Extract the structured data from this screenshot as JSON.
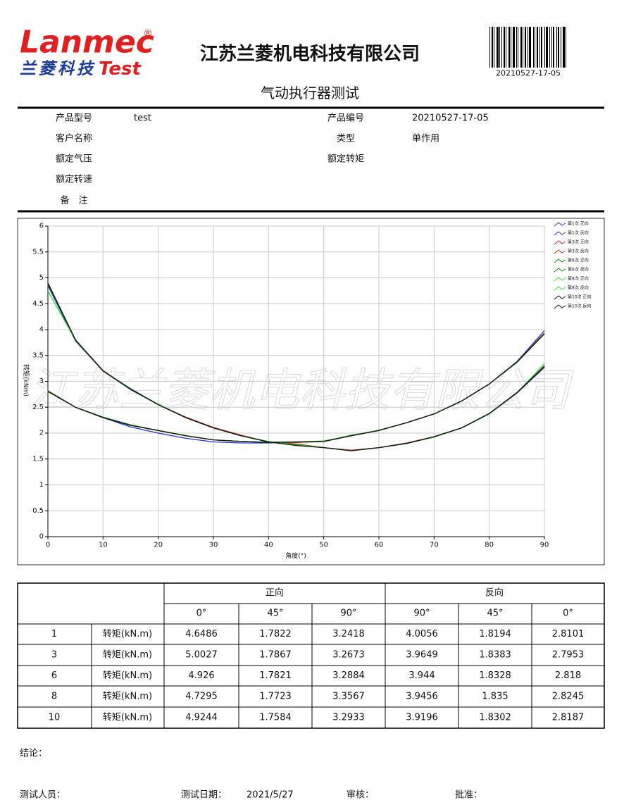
{
  "header": {
    "logo_brand": "Lanmec",
    "logo_reg": "®",
    "logo_cn": "兰菱科技",
    "logo_en": "Test",
    "company": "江苏兰菱机电科技有限公司",
    "barcode": "20210527-17-05",
    "title": "气动执行器测试"
  },
  "info": [
    {
      "label": "产品型号",
      "value": "test"
    },
    {
      "label": "产品编号",
      "value": "20210527-17-05"
    },
    {
      "label": "客户名称"
    },
    {
      "label": "类型",
      "value": "单作用"
    },
    {
      "label": "额定气压"
    },
    {
      "label": "额定转矩"
    },
    {
      "label": "额定转速"
    },
    {
      "label": "备　注"
    }
  ],
  "watermark": "江苏兰菱机电科技有限公司",
  "chart_data": {
    "type": "line",
    "x_label": "角度(°)",
    "y_label": "转矩(kNm)",
    "x": [
      0,
      5,
      10,
      15,
      20,
      25,
      30,
      35,
      40,
      45,
      50,
      55,
      60,
      65,
      70,
      75,
      80,
      85,
      90
    ],
    "series": [
      {
        "name": "第1次 正向",
        "color": "#2233dd",
        "values": [
          4.85,
          3.78,
          3.2,
          2.84,
          2.55,
          2.3,
          2.1,
          1.95,
          1.83,
          1.78,
          1.72,
          1.66,
          1.72,
          1.8,
          1.93,
          2.1,
          2.37,
          2.77,
          3.27
        ]
      },
      {
        "name": "第1次 反向",
        "color": "#2233dd",
        "values": [
          2.82,
          2.5,
          2.3,
          2.12,
          2.0,
          1.9,
          1.83,
          1.81,
          1.81,
          1.82,
          1.84,
          1.95,
          2.05,
          2.2,
          2.37,
          2.62,
          2.95,
          3.38,
          3.98
        ]
      },
      {
        "name": "第3次 正向",
        "color": "#dd2222",
        "values": [
          4.9,
          3.8,
          3.21,
          2.85,
          2.55,
          2.31,
          2.11,
          1.96,
          1.83,
          1.79,
          1.72,
          1.67,
          1.72,
          1.81,
          1.93,
          2.1,
          2.38,
          2.78,
          3.28
        ]
      },
      {
        "name": "第3次 反向",
        "color": "#dd2222",
        "values": [
          2.8,
          2.5,
          2.3,
          2.15,
          2.05,
          1.95,
          1.87,
          1.84,
          1.82,
          1.82,
          1.84,
          1.95,
          2.05,
          2.2,
          2.37,
          2.62,
          2.95,
          3.37,
          3.94
        ]
      },
      {
        "name": "第6次 正向",
        "color": "#118811",
        "values": [
          4.88,
          3.8,
          3.2,
          2.86,
          2.55,
          2.3,
          2.1,
          1.95,
          1.83,
          1.78,
          1.72,
          1.66,
          1.72,
          1.8,
          1.93,
          2.1,
          2.38,
          2.78,
          3.3
        ]
      },
      {
        "name": "第6次 反向",
        "color": "#118811",
        "values": [
          2.81,
          2.5,
          2.31,
          2.16,
          2.05,
          1.95,
          1.87,
          1.84,
          1.82,
          1.83,
          1.84,
          1.96,
          2.05,
          2.2,
          2.37,
          2.62,
          2.95,
          3.36,
          3.92
        ]
      },
      {
        "name": "第8次 正向",
        "color": "#33dd33",
        "values": [
          4.75,
          3.79,
          3.2,
          2.85,
          2.56,
          2.3,
          2.1,
          1.95,
          1.84,
          1.77,
          1.72,
          1.66,
          1.72,
          1.8,
          1.92,
          2.1,
          2.37,
          2.78,
          3.34
        ]
      },
      {
        "name": "第8次 反向",
        "color": "#33dd33",
        "values": [
          2.82,
          2.5,
          2.3,
          2.15,
          2.05,
          1.95,
          1.87,
          1.84,
          1.82,
          1.83,
          1.85,
          1.95,
          2.06,
          2.2,
          2.37,
          2.62,
          2.95,
          3.36,
          3.93
        ]
      },
      {
        "name": "第10次 正向",
        "color": "#111111",
        "values": [
          4.9,
          3.8,
          3.2,
          2.85,
          2.55,
          2.3,
          2.1,
          1.95,
          1.83,
          1.76,
          1.72,
          1.66,
          1.72,
          1.8,
          1.93,
          2.1,
          2.38,
          2.78,
          3.29
        ]
      },
      {
        "name": "第10次 反向",
        "color": "#111111",
        "values": [
          2.81,
          2.5,
          2.3,
          2.15,
          2.05,
          1.95,
          1.87,
          1.84,
          1.82,
          1.83,
          1.84,
          1.95,
          2.05,
          2.2,
          2.37,
          2.62,
          2.95,
          3.37,
          3.92
        ]
      }
    ],
    "xlim": [
      0,
      90
    ],
    "ylim": [
      0,
      6
    ],
    "xticks": [
      0,
      10,
      20,
      30,
      40,
      50,
      60,
      70,
      80,
      90
    ],
    "yticks": [
      0,
      0.5,
      1,
      1.5,
      2,
      2.5,
      3,
      3.5,
      4,
      4.5,
      5,
      5.5,
      6
    ],
    "grid": true,
    "legend": "right"
  },
  "table": {
    "group_headers": [
      "正向",
      "反向"
    ],
    "angles": [
      "0°",
      "45°",
      "90°",
      "90°",
      "45°",
      "0°"
    ],
    "rows": [
      {
        "run": 1,
        "unit": "转矩(kN.m)",
        "values": [
          4.6486,
          1.7822,
          3.2418,
          4.0056,
          1.8194,
          2.8101
        ]
      },
      {
        "run": 3,
        "unit": "转矩(kN.m)",
        "values": [
          5.0027,
          1.7867,
          3.2673,
          3.9649,
          1.8383,
          2.7953
        ]
      },
      {
        "run": 6,
        "unit": "转矩(kN.m)",
        "values": [
          4.926,
          1.7821,
          3.2884,
          3.944,
          1.8328,
          2.818
        ]
      },
      {
        "run": 8,
        "unit": "转矩(kN.m)",
        "values": [
          4.7295,
          1.7723,
          3.3567,
          3.9456,
          1.835,
          2.8245
        ]
      },
      {
        "run": 10,
        "unit": "转矩(kN.m)",
        "values": [
          4.9244,
          1.7584,
          3.2933,
          3.9196,
          1.8302,
          2.8187
        ]
      }
    ]
  },
  "footer": {
    "conclusion_label": "结论：",
    "tester_label": "测试人员：",
    "date_label": "测试日期：",
    "date": "2021/5/27",
    "review_label": "审核：",
    "approve_label": "批准："
  }
}
